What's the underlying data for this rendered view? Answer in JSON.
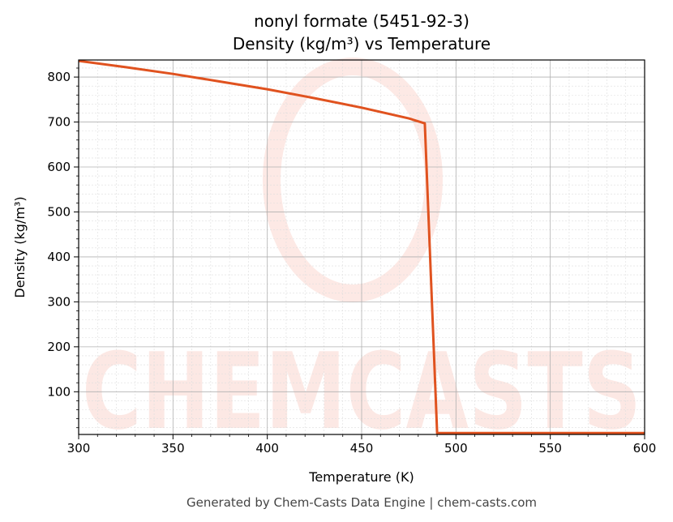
{
  "chart_data": {
    "type": "line",
    "title": "nonyl formate (5451-92-3)",
    "subtitle": "Density (kg/m³) vs Temperature",
    "xlabel": "Temperature (K)",
    "ylabel": "Density (kg/m³)",
    "xlim": [
      300,
      600
    ],
    "ylim": [
      5,
      838
    ],
    "xticks": [
      300,
      350,
      400,
      450,
      500,
      550,
      600
    ],
    "yticks": [
      100,
      200,
      300,
      400,
      500,
      600,
      700,
      800
    ],
    "grid": true,
    "line_color": "#e0521f",
    "series": [
      {
        "x": [
          300,
          325,
          350,
          375,
          400,
          425,
          450,
          475,
          483.5,
          490,
          500,
          550,
          600
        ],
        "y": [
          836,
          822,
          807,
          790,
          773,
          753,
          732,
          708,
          697,
          8,
          8,
          8,
          8
        ]
      }
    ]
  },
  "watermark": "CHEMCASTS",
  "footer": "Generated by Chem-Casts Data Engine | chem-casts.com"
}
